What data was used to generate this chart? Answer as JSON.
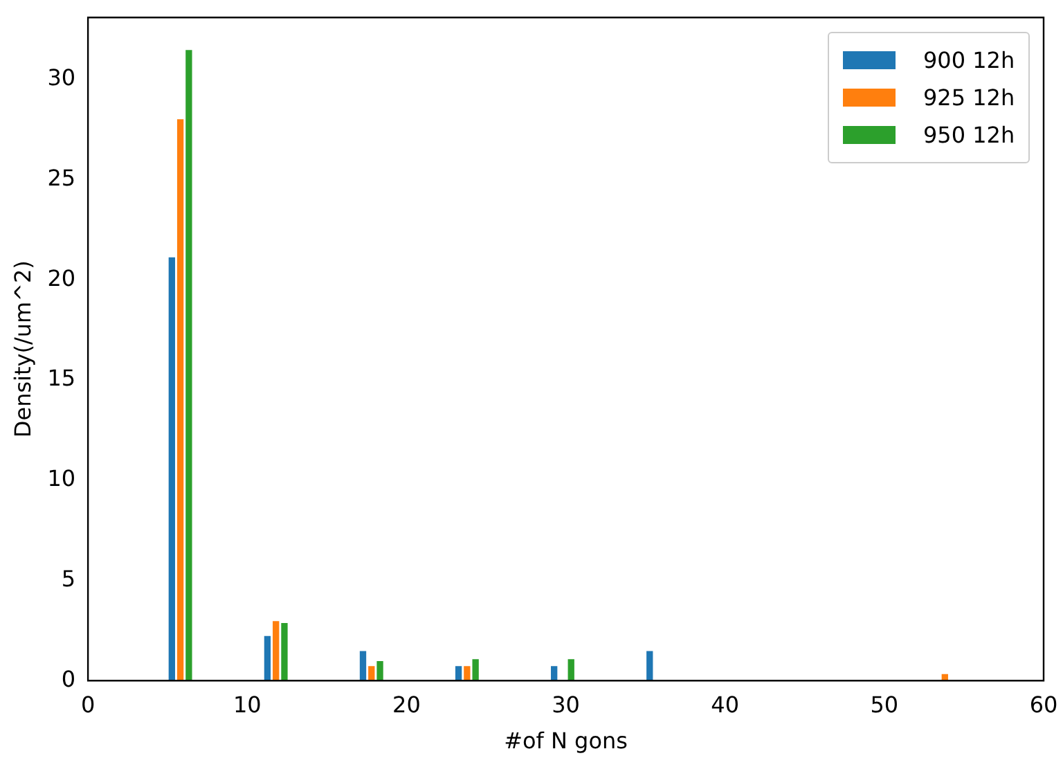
{
  "chart_data": {
    "type": "histogram",
    "xlabel": "#of N gons",
    "ylabel": "Density(/um^2)",
    "bins": [
      4.8,
      6.8,
      8.8,
      10.8,
      12.8,
      14.8,
      16.8,
      18.8,
      20.8,
      22.8,
      24.8,
      26.8,
      28.8,
      30.8,
      32.8,
      34.8,
      36.8,
      38.8,
      40.8,
      42.8,
      44.8,
      46.8,
      48.8,
      50.8,
      52.8,
      54.8
    ],
    "series": [
      {
        "name": "900 12h",
        "color": "#1f77b4",
        "values": [
          21.1,
          0,
          0,
          2.2,
          0,
          0,
          1.45,
          0,
          0,
          0.7,
          0,
          0,
          0.7,
          0,
          0,
          1.45,
          0,
          0,
          0,
          0,
          0,
          0,
          0,
          0,
          0
        ]
      },
      {
        "name": "925 12h",
        "color": "#ff7f0e",
        "values": [
          28,
          0,
          0,
          2.95,
          0,
          0,
          0.7,
          0,
          0,
          0.7,
          0,
          0,
          0,
          0,
          0,
          0,
          0,
          0,
          0,
          0,
          0,
          0,
          0,
          0,
          0.3
        ]
      },
      {
        "name": "950 12h",
        "color": "#2ca02c",
        "values": [
          31.45,
          0,
          0,
          2.85,
          0,
          0,
          0.95,
          0,
          0,
          1.05,
          0,
          0,
          1.05,
          0,
          0,
          0,
          0,
          0,
          0,
          0,
          0,
          0,
          0,
          0,
          0
        ]
      }
    ],
    "xlim": [
      0,
      60
    ],
    "xticks": [
      0,
      10,
      20,
      30,
      40,
      50,
      60
    ],
    "ylim": [
      0,
      33.1
    ],
    "yticks": [
      0,
      5,
      10,
      15,
      20,
      25,
      30
    ],
    "grid": false,
    "legend": "top right"
  }
}
